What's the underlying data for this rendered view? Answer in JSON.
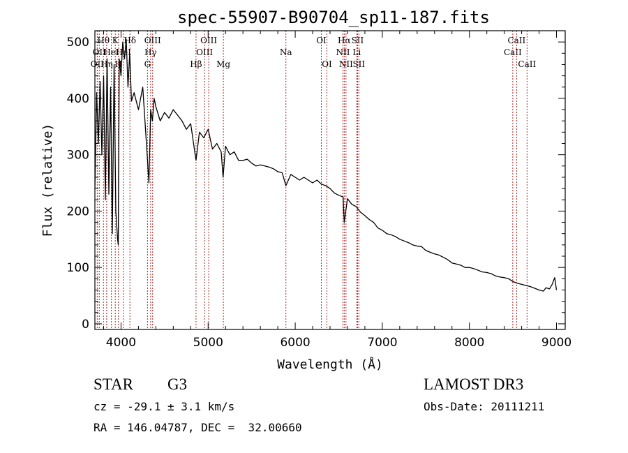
{
  "chart_data": {
    "type": "line",
    "title": "spec-55907-B90704_sp11-187.fits",
    "xlabel": "Wavelength (Å)",
    "ylabel": "Flux (relative)",
    "xlim": [
      3700,
      9100
    ],
    "ylim": [
      -10,
      520
    ],
    "x_ticks": [
      4000,
      5000,
      6000,
      7000,
      8000,
      9000
    ],
    "y_ticks": [
      0,
      100,
      200,
      300,
      400,
      500
    ],
    "grid": false,
    "series": [
      {
        "name": "spectrum",
        "x": [
          3700,
          3720,
          3740,
          3760,
          3780,
          3800,
          3820,
          3840,
          3860,
          3880,
          3900,
          3920,
          3940,
          3960,
          3968,
          3980,
          4000,
          4020,
          4040,
          4060,
          4080,
          4100,
          4120,
          4150,
          4200,
          4250,
          4300,
          4320,
          4340,
          4360,
          4380,
          4400,
          4450,
          4500,
          4550,
          4600,
          4650,
          4700,
          4750,
          4800,
          4861,
          4900,
          4950,
          5000,
          5050,
          5100,
          5150,
          5172,
          5200,
          5250,
          5300,
          5350,
          5400,
          5450,
          5500,
          5550,
          5600,
          5650,
          5700,
          5750,
          5800,
          5850,
          5893,
          5950,
          6000,
          6050,
          6100,
          6150,
          6200,
          6250,
          6300,
          6350,
          6400,
          6450,
          6500,
          6550,
          6563,
          6600,
          6650,
          6700,
          6750,
          6800,
          6850,
          6900,
          6950,
          7000,
          7050,
          7100,
          7150,
          7200,
          7250,
          7300,
          7350,
          7400,
          7450,
          7500,
          7550,
          7600,
          7650,
          7700,
          7750,
          7800,
          7850,
          7900,
          7950,
          8000,
          8050,
          8100,
          8150,
          8200,
          8250,
          8300,
          8350,
          8400,
          8450,
          8500,
          8550,
          8600,
          8650,
          8700,
          8750,
          8800,
          8850,
          8880,
          8920,
          8950,
          8980,
          9000
        ],
        "y": [
          240,
          410,
          320,
          430,
          300,
          440,
          220,
          470,
          230,
          420,
          160,
          460,
          200,
          150,
          140,
          470,
          440,
          500,
          470,
          505,
          420,
          480,
          395,
          410,
          380,
          420,
          300,
          250,
          380,
          360,
          400,
          385,
          360,
          375,
          365,
          380,
          370,
          360,
          345,
          355,
          290,
          340,
          330,
          345,
          310,
          320,
          305,
          260,
          315,
          300,
          305,
          290,
          290,
          292,
          285,
          280,
          282,
          280,
          278,
          275,
          270,
          268,
          245,
          265,
          260,
          255,
          260,
          255,
          250,
          255,
          248,
          245,
          240,
          232,
          228,
          225,
          180,
          222,
          212,
          208,
          198,
          192,
          185,
          180,
          170,
          166,
          160,
          158,
          155,
          150,
          147,
          144,
          140,
          138,
          137,
          130,
          127,
          124,
          122,
          118,
          114,
          108,
          106,
          104,
          100,
          100,
          98,
          95,
          92,
          91,
          89,
          85,
          83,
          82,
          80,
          75,
          72,
          70,
          68,
          66,
          63,
          60,
          58,
          64,
          62,
          70,
          82,
          60
        ]
      }
    ],
    "line_markers": [
      {
        "wl": 3727,
        "label": "OII",
        "row": 3
      },
      {
        "wl": 3750,
        "label": "OII",
        "row": 2
      },
      {
        "wl": 3798,
        "label": "Hθ",
        "row": 1
      },
      {
        "wl": 3835,
        "label": "Hη",
        "row": 3
      },
      {
        "wl": 3889,
        "label": "HeI",
        "row": 2
      },
      {
        "wl": 3934,
        "label": "K",
        "row": 1
      },
      {
        "wl": 3970,
        "label": "H",
        "row": 3
      },
      {
        "wl": 4026,
        "label": "HeI",
        "row": 2
      },
      {
        "wl": 4102,
        "label": "Hδ",
        "row": 1
      },
      {
        "wl": 4304,
        "label": "G",
        "row": 3
      },
      {
        "wl": 4340,
        "label": "Hγ",
        "row": 2
      },
      {
        "wl": 4363,
        "label": "OIII",
        "row": 1
      },
      {
        "wl": 4861,
        "label": "Hβ",
        "row": 3
      },
      {
        "wl": 4959,
        "label": "OIII",
        "row": 2
      },
      {
        "wl": 5007,
        "label": "OIII",
        "row": 1
      },
      {
        "wl": 5175,
        "label": "Mg",
        "row": 3
      },
      {
        "wl": 5893,
        "label": "Na",
        "row": 2
      },
      {
        "wl": 6300,
        "label": "OI",
        "row": 1
      },
      {
        "wl": 6364,
        "label": "OI",
        "row": 3
      },
      {
        "wl": 6548,
        "label": "NII",
        "row": 2
      },
      {
        "wl": 6563,
        "label": "Hα",
        "row": 1
      },
      {
        "wl": 6583,
        "label": "NII",
        "row": 3
      },
      {
        "wl": 6707,
        "label": "Li",
        "row": 2
      },
      {
        "wl": 6716,
        "label": "SII",
        "row": 1
      },
      {
        "wl": 6731,
        "label": "SII",
        "row": 3
      },
      {
        "wl": 8498,
        "label": "CaII",
        "row": 2
      },
      {
        "wl": 8542,
        "label": "CaII",
        "row": 1
      },
      {
        "wl": 8662,
        "label": "CaII",
        "row": 3
      }
    ]
  },
  "info": {
    "class_label": "STAR",
    "subclass": "G3",
    "survey": "LAMOST DR3",
    "cz": "cz = -29.1 ± 3.1 km/s",
    "obs_date": "Obs-Date: 20111211",
    "coords": "RA = 146.04787, DEC =  32.00660"
  }
}
